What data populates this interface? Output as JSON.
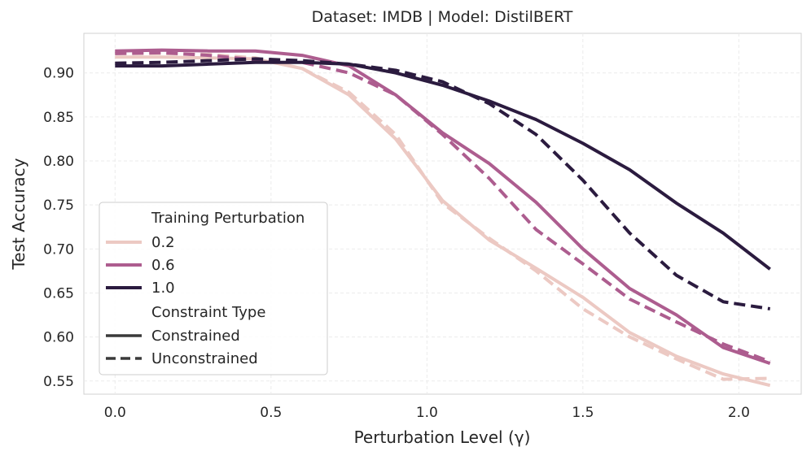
{
  "chart_data": {
    "type": "line",
    "title": "Dataset: IMDB | Model: DistilBERT",
    "xlabel": "Perturbation Level (γ)",
    "ylabel": "Test Accuracy",
    "xlim": [
      -0.1,
      2.2
    ],
    "ylim": [
      0.535,
      0.945
    ],
    "xticks": [
      0.0,
      0.5,
      1.0,
      1.5,
      2.0
    ],
    "xtick_labels": [
      "0.0",
      "0.5",
      "1.0",
      "1.5",
      "2.0"
    ],
    "yticks": [
      0.55,
      0.6,
      0.65,
      0.7,
      0.75,
      0.8,
      0.85,
      0.9
    ],
    "ytick_labels": [
      "0.55",
      "0.60",
      "0.65",
      "0.70",
      "0.75",
      "0.80",
      "0.85",
      "0.90"
    ],
    "grid": true,
    "legend_position": "lower-left",
    "x": [
      0.0,
      0.15,
      0.3,
      0.45,
      0.6,
      0.75,
      0.9,
      1.05,
      1.2,
      1.35,
      1.5,
      1.65,
      1.8,
      1.95,
      2.1
    ],
    "legend": {
      "hue_title": "Training Perturbation",
      "style_title": "Constraint Type",
      "hue_entries": [
        {
          "label": "0.2",
          "color": "#ecc9c3"
        },
        {
          "label": "0.6",
          "color": "#ad5d8f"
        },
        {
          "label": "1.0",
          "color": "#2b1b3f"
        }
      ],
      "style_entries": [
        {
          "label": "Constrained",
          "dash": "solid"
        },
        {
          "label": "Unconstrained",
          "dash": "dashed"
        }
      ]
    },
    "series": [
      {
        "name": "0.2 Constrained",
        "perturbation": "0.2",
        "constraint": "Constrained",
        "color": "#ecc9c3",
        "dashed": false,
        "values": [
          0.918,
          0.918,
          0.917,
          0.916,
          0.905,
          0.875,
          0.825,
          0.755,
          0.71,
          0.678,
          0.645,
          0.605,
          0.578,
          0.558,
          0.545
        ]
      },
      {
        "name": "0.2 Unconstrained",
        "perturbation": "0.2",
        "constraint": "Unconstrained",
        "color": "#ecc9c3",
        "dashed": true,
        "values": [
          0.922,
          0.922,
          0.921,
          0.917,
          0.905,
          0.878,
          0.83,
          0.752,
          0.712,
          0.675,
          0.632,
          0.6,
          0.575,
          0.552,
          0.553
        ]
      },
      {
        "name": "0.6 Constrained",
        "perturbation": "0.6",
        "constraint": "Constrained",
        "color": "#ad5d8f",
        "dashed": false,
        "values": [
          0.925,
          0.926,
          0.925,
          0.925,
          0.92,
          0.908,
          0.875,
          0.832,
          0.797,
          0.753,
          0.7,
          0.655,
          0.625,
          0.588,
          0.57
        ]
      },
      {
        "name": "0.6 Unconstrained",
        "perturbation": "0.6",
        "constraint": "Unconstrained",
        "color": "#ad5d8f",
        "dashed": true,
        "values": [
          0.922,
          0.923,
          0.92,
          0.915,
          0.912,
          0.9,
          0.875,
          0.83,
          0.78,
          0.722,
          0.683,
          0.643,
          0.617,
          0.592,
          0.572
        ]
      },
      {
        "name": "1.0 Constrained",
        "perturbation": "1.0",
        "constraint": "Constrained",
        "color": "#2b1b3f",
        "dashed": false,
        "values": [
          0.908,
          0.908,
          0.91,
          0.912,
          0.912,
          0.91,
          0.9,
          0.886,
          0.868,
          0.847,
          0.82,
          0.79,
          0.752,
          0.718,
          0.677
        ]
      },
      {
        "name": "1.0 Unconstrained",
        "perturbation": "1.0",
        "constraint": "Unconstrained",
        "color": "#2b1b3f",
        "dashed": true,
        "values": [
          0.911,
          0.912,
          0.914,
          0.916,
          0.914,
          0.91,
          0.903,
          0.89,
          0.865,
          0.83,
          0.778,
          0.718,
          0.67,
          0.64,
          0.632
        ]
      }
    ]
  }
}
